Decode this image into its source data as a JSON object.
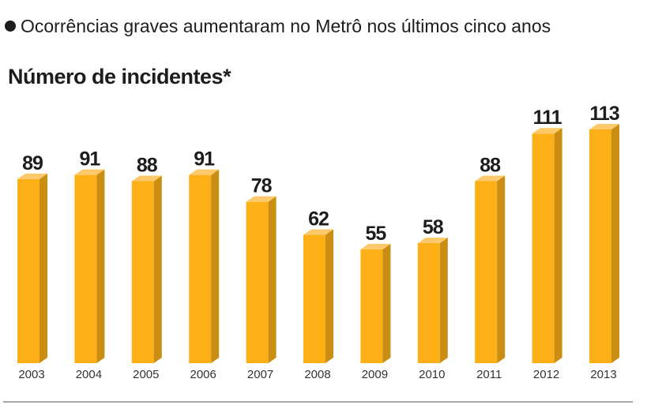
{
  "title": "Ocorrências graves aumentaram no Metrô nos últimos cinco anos",
  "chart_data": {
    "type": "bar",
    "title": "Número de incidentes*",
    "categories": [
      "2003",
      "2004",
      "2005",
      "2006",
      "2007",
      "2008",
      "2009",
      "2010",
      "2011",
      "2012",
      "2013"
    ],
    "values": [
      89,
      91,
      88,
      91,
      78,
      62,
      55,
      58,
      88,
      111,
      113
    ],
    "data_labels": true,
    "grid": false,
    "ylim": [
      0,
      120
    ],
    "colors": {
      "front": "#fcaf17",
      "side": "#c98e12",
      "top": "#fdc96b",
      "label": "#1d1d1b"
    }
  }
}
